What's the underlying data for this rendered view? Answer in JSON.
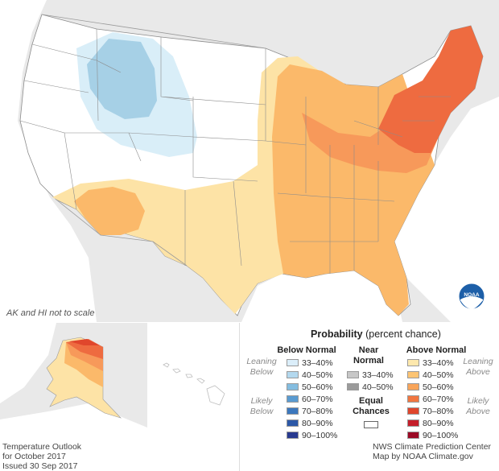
{
  "map": {
    "note": "AK and HI not to scale",
    "colors": {
      "land_bg": "#e9e9e9",
      "ocean_bg": "#ffffff",
      "state_fill": "#ffffff",
      "below_33_40": "#d9eef8",
      "below_40_50": "#a6d0e6",
      "above_33_40": "#fde3a6",
      "above_40_50": "#fbb96a",
      "above_50_60": "#f7995a",
      "above_60_70": "#ee6b40"
    }
  },
  "legend": {
    "title_bold": "Probability",
    "title_rest": "(percent chance)",
    "below_head": "Below Normal",
    "near_head_1": "Near",
    "near_head_2": "Normal",
    "above_head": "Above Normal",
    "leaning_below": "Leaning Below",
    "likely_below": "Likely Below",
    "leaning_above": "Leaning Above",
    "likely_above": "Likely Above",
    "equal_1": "Equal",
    "equal_2": "Chances",
    "below_items": [
      {
        "label": "33–40%",
        "color": "#dbeefa"
      },
      {
        "label": "40–50%",
        "color": "#b3d8ee"
      },
      {
        "label": "50–60%",
        "color": "#84bde0"
      },
      {
        "label": "60–70%",
        "color": "#5a9bd1"
      },
      {
        "label": "70–80%",
        "color": "#3c78bd"
      },
      {
        "label": "80–90%",
        "color": "#2c58a7"
      },
      {
        "label": "90–100%",
        "color": "#283a8f"
      }
    ],
    "near_items": [
      {
        "label": "33–40%",
        "color": "#c7c7c7"
      },
      {
        "label": "40–50%",
        "color": "#9b9b9b"
      }
    ],
    "above_items": [
      {
        "label": "33–40%",
        "color": "#fde8ad"
      },
      {
        "label": "40–50%",
        "color": "#fcc473"
      },
      {
        "label": "50–60%",
        "color": "#f9a55a"
      },
      {
        "label": "60–70%",
        "color": "#f17640"
      },
      {
        "label": "70–80%",
        "color": "#e0462c"
      },
      {
        "label": "80–90%",
        "color": "#c51e2a"
      },
      {
        "label": "90–100%",
        "color": "#9b0a25"
      }
    ]
  },
  "footer": {
    "left_1": "Temperature Outlook",
    "left_2": "for October 2017",
    "left_3": "Issued 30 Sep 2017",
    "right_1": "NWS Climate Prediction Center",
    "right_2": "Map by NOAA Climate.gov"
  },
  "logo": {
    "text": "NOAA",
    "color": "#1d5fa8"
  }
}
